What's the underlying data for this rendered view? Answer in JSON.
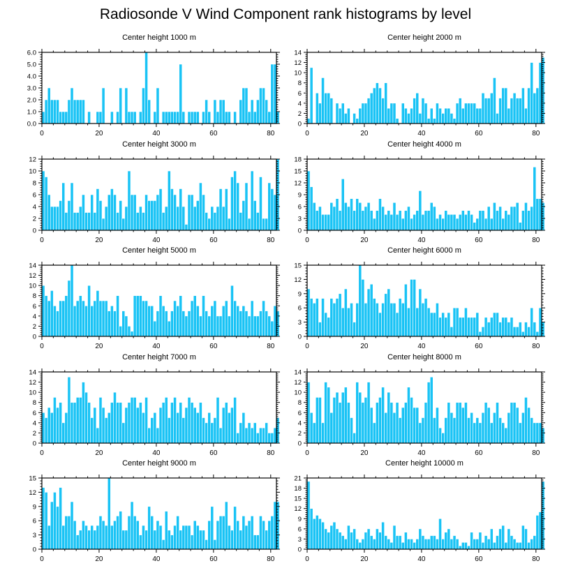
{
  "figure": {
    "title": "Radiosonde V Wind Component rank histograms by level",
    "bar_color": "#19c3f5"
  },
  "chart_data": [
    {
      "type": "bar",
      "title": "Center height 1000 m",
      "ylim": [
        0,
        6
      ],
      "yticks": [
        0,
        1,
        2,
        3,
        4,
        5,
        6
      ],
      "ytick_labels": [
        "0.0",
        "1.0",
        "2.0",
        "3.0",
        "4.0",
        "5.0",
        "6.0"
      ],
      "xlim": [
        0,
        82
      ],
      "xticks": [
        0,
        20,
        40,
        60,
        80
      ],
      "values": [
        1,
        2,
        3,
        2,
        2,
        2,
        1,
        1,
        1,
        2,
        3,
        2,
        2,
        2,
        2,
        0,
        1,
        0,
        0,
        1,
        1,
        3,
        0,
        0,
        1,
        0,
        1,
        3,
        0,
        3,
        1,
        1,
        1,
        0,
        1,
        3,
        6,
        2,
        0,
        1,
        3,
        0,
        1,
        1,
        1,
        1,
        1,
        1,
        5,
        1,
        0,
        1,
        1,
        1,
        1,
        0,
        1,
        2,
        1,
        0,
        2,
        1,
        2,
        2,
        1,
        1,
        0,
        1,
        0,
        2,
        3,
        3,
        1,
        2,
        1,
        2,
        3,
        3,
        2,
        1,
        5,
        5,
        1
      ]
    },
    {
      "type": "bar",
      "title": "Center height 2000 m",
      "ylim": [
        0,
        14
      ],
      "yticks": [
        0,
        2,
        4,
        6,
        8,
        10,
        12,
        14
      ],
      "xlim": [
        0,
        82
      ],
      "xticks": [
        0,
        20,
        40,
        60,
        80
      ],
      "values": [
        1,
        11,
        0,
        6,
        4,
        9,
        6,
        6,
        5,
        0,
        4,
        3,
        4,
        2,
        3,
        0,
        2,
        1,
        3,
        4,
        4,
        5,
        6,
        7,
        8,
        7,
        5,
        8,
        3,
        4,
        4,
        1,
        0,
        4,
        3,
        2,
        3,
        5,
        6,
        2,
        5,
        4,
        1,
        3,
        1,
        4,
        3,
        2,
        3,
        3,
        2,
        1,
        4,
        5,
        3,
        4,
        4,
        4,
        4,
        3,
        3,
        6,
        5,
        5,
        6,
        9,
        2,
        5,
        7,
        7,
        3,
        5,
        6,
        5,
        5,
        7,
        3,
        7,
        12,
        6,
        7,
        12,
        13
      ]
    },
    {
      "type": "bar",
      "title": "Center height 3000 m",
      "ylim": [
        0,
        12
      ],
      "yticks": [
        0,
        2,
        4,
        6,
        8,
        10,
        12
      ],
      "xlim": [
        0,
        82
      ],
      "xticks": [
        0,
        20,
        40,
        60,
        80
      ],
      "values": [
        10,
        9,
        6,
        4,
        4,
        4,
        5,
        8,
        3,
        5,
        8,
        3,
        3,
        4,
        6,
        3,
        3,
        6,
        3,
        7,
        5,
        2,
        4,
        6,
        7,
        6,
        3,
        5,
        2,
        4,
        10,
        6,
        6,
        3,
        4,
        3,
        6,
        5,
        5,
        5,
        6,
        7,
        3,
        4,
        10,
        7,
        6,
        4,
        7,
        4,
        1,
        6,
        6,
        4,
        5,
        8,
        6,
        3,
        2,
        4,
        3,
        4,
        7,
        4,
        7,
        2,
        9,
        10,
        8,
        3,
        5,
        8,
        2,
        10,
        5,
        3,
        9,
        2,
        2,
        8,
        7,
        6,
        12
      ]
    },
    {
      "type": "bar",
      "title": "Center height 4000 m",
      "ylim": [
        0,
        18
      ],
      "yticks": [
        0,
        3,
        6,
        9,
        12,
        15,
        18
      ],
      "xlim": [
        0,
        82
      ],
      "xticks": [
        0,
        20,
        40,
        60,
        80
      ],
      "values": [
        15,
        11,
        7,
        5,
        6,
        4,
        4,
        4,
        7,
        6,
        8,
        5,
        13,
        7,
        6,
        8,
        5,
        8,
        7,
        5,
        6,
        7,
        5,
        3,
        5,
        8,
        6,
        4,
        5,
        4,
        7,
        4,
        5,
        3,
        5,
        6,
        3,
        4,
        5,
        10,
        4,
        5,
        5,
        7,
        6,
        3,
        4,
        3,
        5,
        4,
        4,
        4,
        3,
        4,
        5,
        4,
        5,
        4,
        2,
        3,
        5,
        5,
        3,
        6,
        3,
        7,
        5,
        6,
        3,
        5,
        4,
        6,
        6,
        7,
        2,
        5,
        7,
        5,
        6,
        16,
        8,
        8,
        7
      ]
    },
    {
      "type": "bar",
      "title": "Center height 5000 m",
      "ylim": [
        0,
        14
      ],
      "yticks": [
        0,
        2,
        4,
        6,
        8,
        10,
        12,
        14
      ],
      "xlim": [
        0,
        82
      ],
      "xticks": [
        0,
        20,
        40,
        60,
        80
      ],
      "values": [
        10,
        8,
        7,
        9,
        6,
        5,
        7,
        7,
        8,
        11,
        14,
        6,
        7,
        8,
        7,
        6,
        10,
        6,
        7,
        9,
        7,
        7,
        7,
        5,
        6,
        5,
        8,
        2,
        5,
        4,
        2,
        1,
        8,
        8,
        8,
        7,
        7,
        6,
        6,
        3,
        5,
        8,
        6,
        5,
        3,
        5,
        7,
        6,
        8,
        5,
        4,
        5,
        7,
        8,
        6,
        4,
        8,
        5,
        4,
        6,
        7,
        4,
        4,
        6,
        7,
        4,
        10,
        7,
        6,
        5,
        6,
        5,
        4,
        7,
        4,
        4,
        5,
        7,
        5,
        4,
        3,
        6,
        5
      ]
    },
    {
      "type": "bar",
      "title": "Center height 6000 m",
      "ylim": [
        0,
        15
      ],
      "yticks": [
        0,
        3,
        6,
        9,
        12,
        15
      ],
      "xlim": [
        0,
        82
      ],
      "xticks": [
        0,
        20,
        40,
        60,
        80
      ],
      "values": [
        10,
        8,
        7,
        8,
        3,
        8,
        5,
        4,
        8,
        7,
        8,
        9,
        6,
        10,
        6,
        7,
        3,
        7,
        15,
        12,
        7,
        10,
        11,
        8,
        7,
        5,
        7,
        9,
        10,
        7,
        7,
        5,
        8,
        7,
        11,
        6,
        12,
        12,
        6,
        10,
        7,
        8,
        6,
        5,
        5,
        7,
        4,
        5,
        4,
        5,
        2,
        6,
        6,
        4,
        4,
        6,
        4,
        4,
        4,
        5,
        1,
        2,
        4,
        3,
        4,
        5,
        5,
        3,
        4,
        4,
        3,
        4,
        2,
        2,
        3,
        1,
        3,
        2,
        6,
        3,
        1,
        6,
        3
      ]
    },
    {
      "type": "bar",
      "title": "Center height 7000 m",
      "ylim": [
        0,
        14
      ],
      "yticks": [
        0,
        2,
        4,
        6,
        8,
        10,
        12,
        14
      ],
      "xlim": [
        0,
        82
      ],
      "xticks": [
        0,
        20,
        40,
        60,
        80
      ],
      "values": [
        6,
        5,
        7,
        6,
        9,
        7,
        8,
        4,
        6,
        13,
        8,
        8,
        9,
        9,
        12,
        10,
        8,
        5,
        7,
        3,
        9,
        7,
        5,
        6,
        8,
        10,
        8,
        8,
        4,
        7,
        8,
        9,
        9,
        7,
        8,
        6,
        9,
        3,
        5,
        6,
        3,
        7,
        8,
        9,
        5,
        8,
        9,
        6,
        8,
        5,
        7,
        9,
        8,
        7,
        6,
        8,
        5,
        4,
        6,
        4,
        5,
        9,
        3,
        7,
        8,
        6,
        7,
        9,
        2,
        4,
        6,
        3,
        4,
        3,
        4,
        2,
        3,
        3,
        4,
        2,
        2,
        3,
        5
      ]
    },
    {
      "type": "bar",
      "title": "Center height 8000 m",
      "ylim": [
        0,
        14
      ],
      "yticks": [
        0,
        2,
        4,
        6,
        8,
        10,
        12,
        14
      ],
      "xlim": [
        0,
        82
      ],
      "xticks": [
        0,
        20,
        40,
        60,
        80
      ],
      "values": [
        12,
        6,
        4,
        9,
        9,
        4,
        12,
        11,
        6,
        9,
        10,
        8,
        10,
        11,
        8,
        5,
        2,
        12,
        10,
        8,
        9,
        12,
        7,
        4,
        8,
        9,
        11,
        6,
        10,
        8,
        6,
        8,
        5,
        7,
        8,
        11,
        9,
        7,
        7,
        4,
        5,
        8,
        12,
        13,
        5,
        7,
        3,
        2,
        5,
        8,
        6,
        5,
        8,
        8,
        7,
        8,
        5,
        6,
        4,
        5,
        4,
        6,
        8,
        7,
        4,
        6,
        8,
        5,
        4,
        3,
        6,
        8,
        8,
        7,
        4,
        6,
        9,
        7,
        5,
        4,
        4,
        4,
        3
      ]
    },
    {
      "type": "bar",
      "title": "Center height 9000 m",
      "ylim": [
        0,
        15
      ],
      "yticks": [
        0,
        3,
        6,
        9,
        12,
        15
      ],
      "xlim": [
        0,
        82
      ],
      "xticks": [
        0,
        20,
        40,
        60,
        80
      ],
      "values": [
        13,
        12,
        5,
        10,
        12,
        9,
        13,
        5,
        7,
        7,
        10,
        6,
        3,
        4,
        6,
        5,
        4,
        5,
        4,
        5,
        7,
        6,
        5,
        15,
        5,
        6,
        7,
        8,
        4,
        4,
        7,
        10,
        7,
        6,
        3,
        5,
        4,
        9,
        7,
        4,
        6,
        5,
        2,
        8,
        4,
        3,
        5,
        7,
        4,
        5,
        5,
        5,
        3,
        6,
        5,
        4,
        4,
        2,
        6,
        9,
        2,
        6,
        7,
        7,
        10,
        5,
        4,
        9,
        6,
        4,
        7,
        5,
        6,
        7,
        3,
        3,
        7,
        6,
        4,
        6,
        7,
        10,
        10
      ]
    },
    {
      "type": "bar",
      "title": "Center height 10000 m",
      "ylim": [
        0,
        21
      ],
      "yticks": [
        0,
        3,
        6,
        9,
        12,
        15,
        18,
        21
      ],
      "xlim": [
        0,
        82
      ],
      "xticks": [
        0,
        20,
        40,
        60,
        80
      ],
      "values": [
        20,
        12,
        9,
        10,
        9,
        8,
        6,
        5,
        7,
        8,
        6,
        5,
        4,
        3,
        7,
        5,
        6,
        3,
        2,
        3,
        5,
        6,
        4,
        3,
        6,
        5,
        8,
        4,
        3,
        2,
        7,
        4,
        4,
        2,
        5,
        3,
        3,
        2,
        3,
        6,
        4,
        3,
        3,
        4,
        4,
        3,
        9,
        3,
        5,
        6,
        3,
        4,
        3,
        1,
        2,
        2,
        1,
        5,
        3,
        3,
        5,
        2,
        4,
        3,
        6,
        2,
        4,
        6,
        7,
        2,
        6,
        4,
        3,
        2,
        2,
        7,
        6,
        2,
        3,
        4,
        10,
        11,
        20
      ]
    }
  ]
}
